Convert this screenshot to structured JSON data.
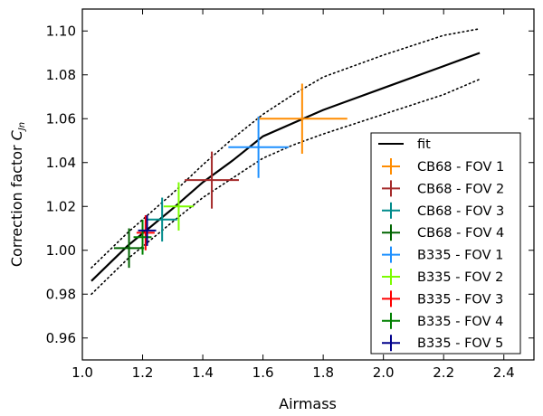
{
  "chart_data": {
    "type": "scatter",
    "title": "",
    "xlabel": "Airmass",
    "ylabel": "Correction factor",
    "ylabel_symbol": "C",
    "ylabel_subscript": "Jn",
    "xlim": [
      1.0,
      2.5
    ],
    "ylim": [
      0.95,
      1.11
    ],
    "xticks": [
      "1.0",
      "1.2",
      "1.4",
      "1.6",
      "1.8",
      "2.0",
      "2.2",
      "2.4"
    ],
    "yticks": [
      "0.96",
      "0.98",
      "1.00",
      "1.02",
      "1.04",
      "1.06",
      "1.08",
      "1.10"
    ],
    "fit": {
      "name": "fit",
      "color": "#000000",
      "x": [
        1.03,
        1.15,
        1.3,
        1.4,
        1.5,
        1.6,
        1.7,
        1.8,
        2.0,
        2.2,
        2.32
      ],
      "y": [
        0.986,
        1.002,
        1.019,
        1.031,
        1.041,
        1.052,
        1.058,
        1.064,
        1.074,
        1.084,
        1.09
      ],
      "upper_y": [
        0.992,
        1.008,
        1.026,
        1.039,
        1.051,
        1.062,
        1.071,
        1.079,
        1.089,
        1.098,
        1.101
      ],
      "lower_y": [
        0.98,
        0.996,
        1.013,
        1.024,
        1.033,
        1.042,
        1.048,
        1.053,
        1.062,
        1.071,
        1.078
      ]
    },
    "series": [
      {
        "name": "CB68 - FOV 1",
        "color": "#ff8c00",
        "x": 1.73,
        "y": 1.06,
        "xerr": 0.15,
        "yerr": 0.016
      },
      {
        "name": "CB68 - FOV 2",
        "color": "#a52a2a",
        "x": 1.43,
        "y": 1.032,
        "xerr": 0.09,
        "yerr": 0.013
      },
      {
        "name": "CB68 - FOV 3",
        "color": "#008b8b",
        "x": 1.265,
        "y": 1.014,
        "xerr": 0.05,
        "yerr": 0.01
      },
      {
        "name": "CB68 - FOV 4",
        "color": "#006400",
        "x": 1.155,
        "y": 1.001,
        "xerr": 0.05,
        "yerr": 0.009
      },
      {
        "name": "B335 - FOV 1",
        "color": "#1e90ff",
        "x": 1.585,
        "y": 1.047,
        "xerr": 0.1,
        "yerr": 0.014
      },
      {
        "name": "B335 - FOV 2",
        "color": "#7cfc00",
        "x": 1.32,
        "y": 1.02,
        "xerr": 0.05,
        "yerr": 0.011
      },
      {
        "name": "B335 - FOV 3",
        "color": "#ff0000",
        "x": 1.21,
        "y": 1.008,
        "xerr": 0.03,
        "yerr": 0.008
      },
      {
        "name": "B335 - FOV 4",
        "color": "#008000",
        "x": 1.2,
        "y": 1.006,
        "xerr": 0.03,
        "yerr": 0.008
      },
      {
        "name": "B335 - FOV 5",
        "color": "#00008b",
        "x": 1.215,
        "y": 1.009,
        "xerr": 0.03,
        "yerr": 0.007
      }
    ],
    "legend": "lower-right",
    "grid": false
  }
}
